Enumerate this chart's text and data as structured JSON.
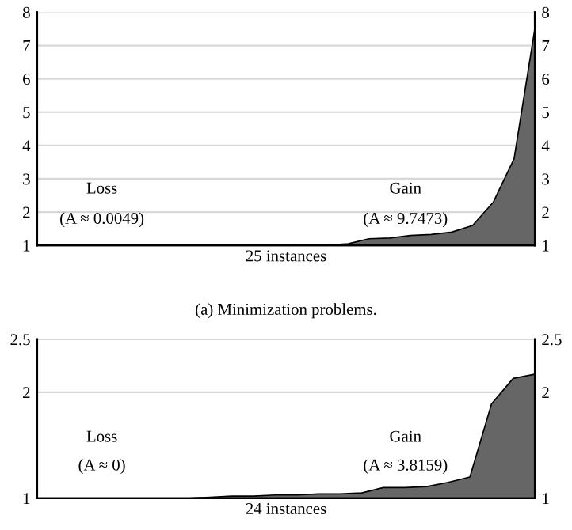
{
  "chart_data": [
    {
      "type": "area",
      "categories": [
        null,
        null,
        null,
        null,
        null,
        null,
        null,
        null,
        null,
        null,
        null,
        null,
        null,
        null,
        null,
        null,
        null,
        null,
        null,
        null,
        null,
        null,
        null,
        null,
        null
      ],
      "series": [
        {
          "color": "#666666",
          "values": [
            1,
            1,
            1,
            1,
            1,
            1,
            1,
            1,
            1,
            1,
            1,
            1,
            1,
            1,
            1.01,
            1.05,
            1.2,
            1.22,
            1.3,
            1.33,
            1.4,
            1.6,
            2.3,
            3.6,
            7.5
          ]
        }
      ],
      "xlabel": "25 instances",
      "ylim": [
        1,
        8
      ],
      "yticks": [
        1,
        2,
        3,
        4,
        5,
        6,
        7,
        8
      ],
      "y2lim": [
        1,
        8
      ],
      "y2ticks": [
        1,
        2,
        3,
        4,
        5,
        6,
        7,
        8
      ],
      "grid": "y",
      "tick_labels": "y",
      "annotations": [
        "Loss",
        "(A ≈ 0.0049)",
        "Gain",
        "(A ≈ 9.7473)",
        "(a) Minimization problems."
      ]
    },
    {
      "type": "area",
      "categories": [
        null,
        null,
        null,
        null,
        null,
        null,
        null,
        null,
        null,
        null,
        null,
        null,
        null,
        null,
        null,
        null,
        null,
        null,
        null,
        null,
        null,
        null,
        null,
        null
      ],
      "series": [
        {
          "color": "#666666",
          "values": [
            1,
            1,
            1,
            1,
            1,
            1,
            1,
            1,
            1.01,
            1.02,
            1.02,
            1.03,
            1.03,
            1.04,
            1.04,
            1.05,
            1.1,
            1.1,
            1.11,
            1.15,
            1.2,
            1.89,
            2.13,
            2.17
          ]
        }
      ],
      "xlabel": "24 instances",
      "ylim": [
        1,
        2.5
      ],
      "yticks": [
        1,
        2,
        2.5
      ],
      "y2lim": [
        1,
        2.5
      ],
      "y2ticks": [
        1,
        2,
        2.5
      ],
      "grid": "y",
      "tick_labels": "y",
      "annotations": [
        "Loss",
        "(A ≈ 0)",
        "Gain",
        "(A ≈ 3.8159)"
      ]
    }
  ]
}
